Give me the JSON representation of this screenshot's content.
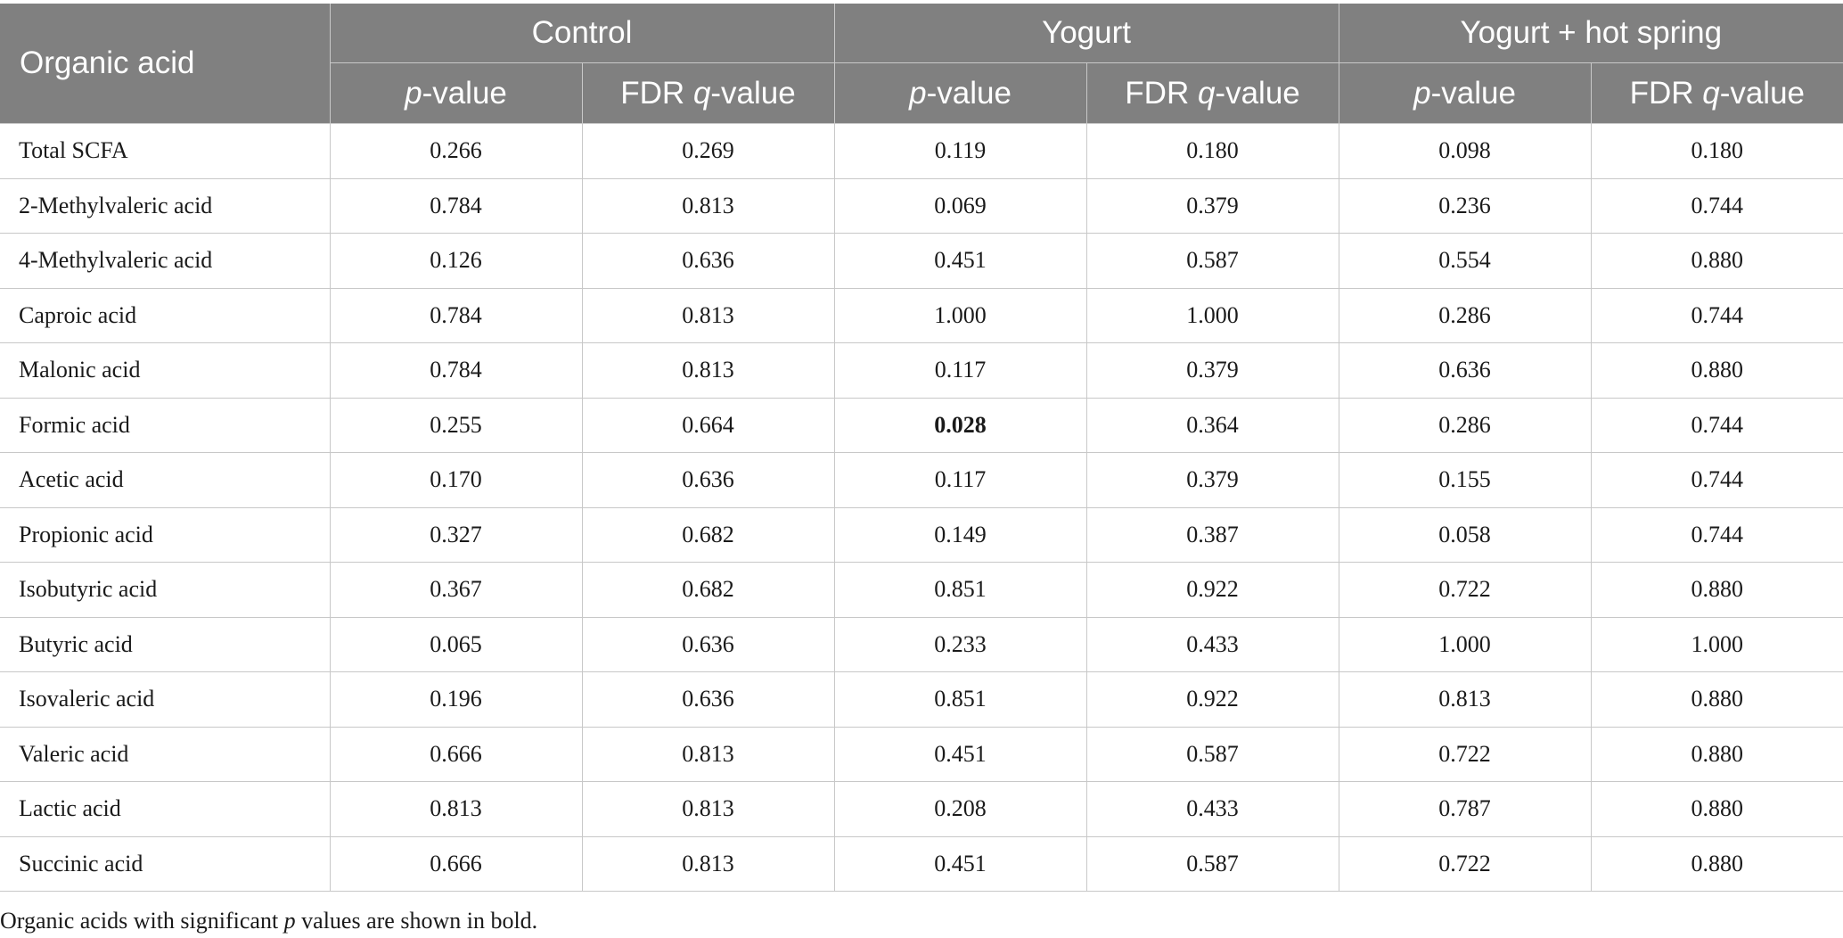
{
  "header": {
    "organic_acid": "Organic acid",
    "groups": [
      "Control",
      "Yogurt",
      "Yogurt + hot spring"
    ],
    "p_letter": "p",
    "p_suffix": "-value",
    "fdr_prefix": "FDR ",
    "q_letter": "q",
    "q_suffix": "-value"
  },
  "rows": [
    {
      "name": "Total SCFA",
      "values": [
        "0.266",
        "0.269",
        "0.119",
        "0.180",
        "0.098",
        "0.180"
      ]
    },
    {
      "name": "2-Methylvaleric acid",
      "values": [
        "0.784",
        "0.813",
        "0.069",
        "0.379",
        "0.236",
        "0.744"
      ]
    },
    {
      "name": "4-Methylvaleric acid",
      "values": [
        "0.126",
        "0.636",
        "0.451",
        "0.587",
        "0.554",
        "0.880"
      ]
    },
    {
      "name": "Caproic acid",
      "values": [
        "0.784",
        "0.813",
        "1.000",
        "1.000",
        "0.286",
        "0.744"
      ]
    },
    {
      "name": "Malonic acid",
      "values": [
        "0.784",
        "0.813",
        "0.117",
        "0.379",
        "0.636",
        "0.880"
      ]
    },
    {
      "name": "Formic acid",
      "values": [
        "0.255",
        "0.664",
        "0.028",
        "0.364",
        "0.286",
        "0.744"
      ]
    },
    {
      "name": "Acetic acid",
      "values": [
        "0.170",
        "0.636",
        "0.117",
        "0.379",
        "0.155",
        "0.744"
      ]
    },
    {
      "name": "Propionic acid",
      "values": [
        "0.327",
        "0.682",
        "0.149",
        "0.387",
        "0.058",
        "0.744"
      ]
    },
    {
      "name": "Isobutyric acid",
      "values": [
        "0.367",
        "0.682",
        "0.851",
        "0.922",
        "0.722",
        "0.880"
      ]
    },
    {
      "name": "Butyric acid",
      "values": [
        "0.065",
        "0.636",
        "0.233",
        "0.433",
        "1.000",
        "1.000"
      ]
    },
    {
      "name": "Isovaleric acid",
      "values": [
        "0.196",
        "0.636",
        "0.851",
        "0.922",
        "0.813",
        "0.880"
      ]
    },
    {
      "name": "Valeric acid",
      "values": [
        "0.666",
        "0.813",
        "0.451",
        "0.587",
        "0.722",
        "0.880"
      ]
    },
    {
      "name": "Lactic acid",
      "values": [
        "0.813",
        "0.813",
        "0.208",
        "0.433",
        "0.787",
        "0.880"
      ]
    },
    {
      "name": "Succinic acid",
      "values": [
        "0.666",
        "0.813",
        "0.451",
        "0.587",
        "0.722",
        "0.880"
      ]
    }
  ],
  "footnote": {
    "before": "Organic acids with significant ",
    "p_letter": "p",
    "after": " values are shown in bold."
  }
}
